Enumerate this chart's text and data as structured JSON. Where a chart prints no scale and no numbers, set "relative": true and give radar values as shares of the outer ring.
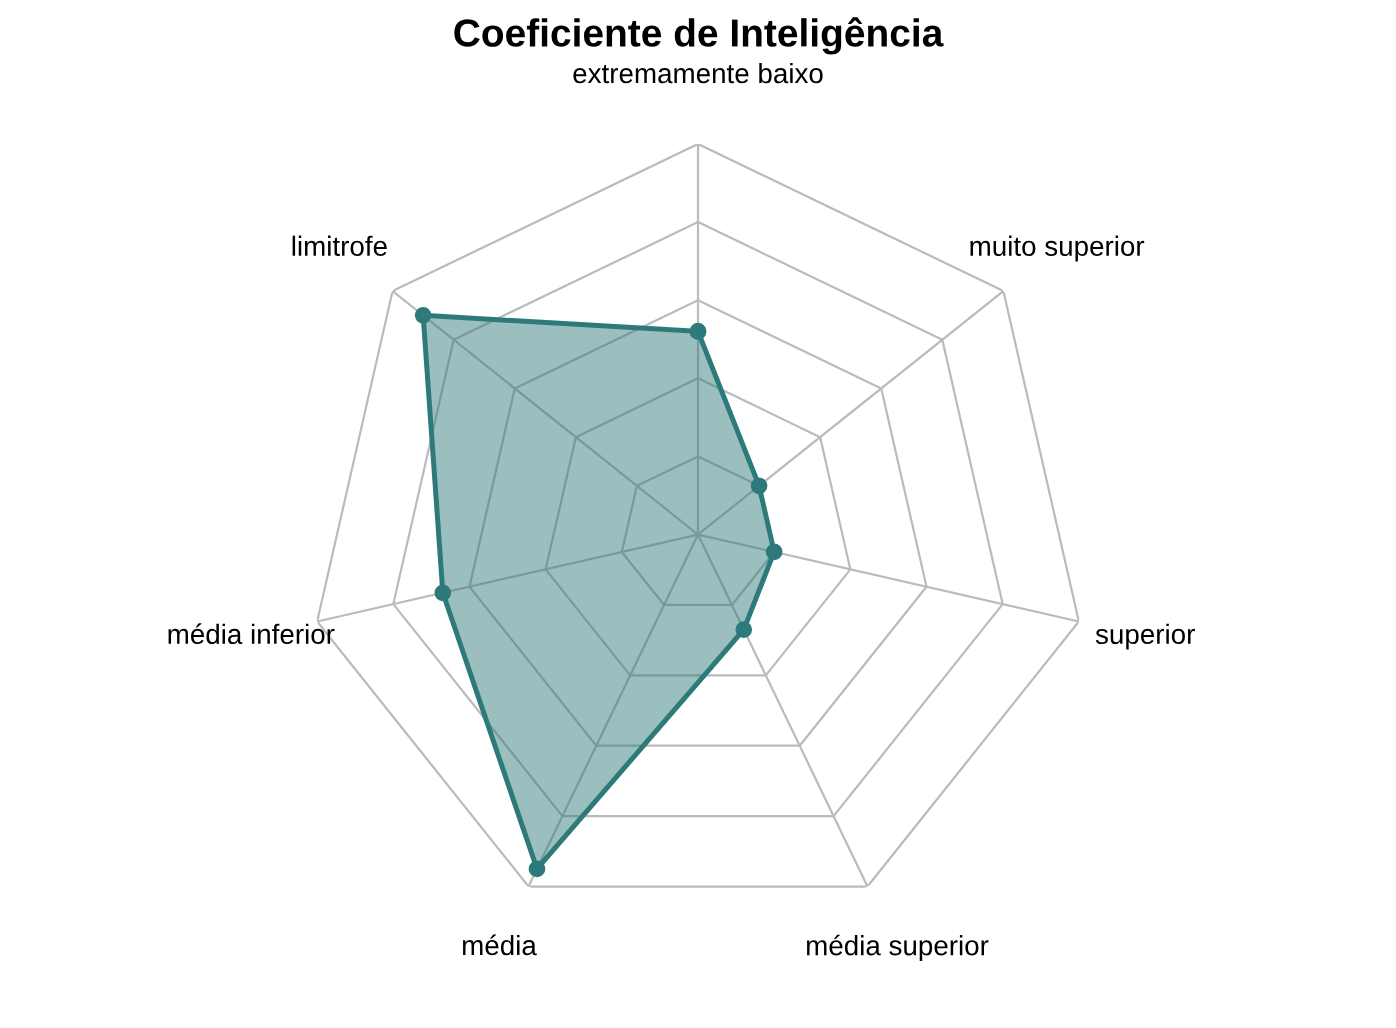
{
  "chart_data": {
    "type": "radar",
    "title": "Coeficiente de Inteligência",
    "relative": true,
    "categories": [
      "extremamente baixo",
      "muito superior",
      "superior",
      "média superior",
      "média",
      "média inferior",
      "limitrofe"
    ],
    "series": [
      {
        "color": "#2e7a7a",
        "values": [
          0.52,
          0.2,
          0.2,
          0.27,
          0.95,
          0.67,
          0.9
        ]
      }
    ],
    "grid": true,
    "marker": "circle",
    "line_style": "solid"
  }
}
